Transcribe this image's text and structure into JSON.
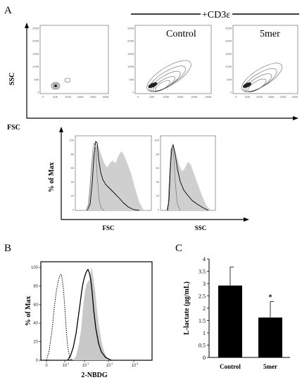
{
  "panels": {
    "a": "A",
    "b": "B",
    "c": "C"
  },
  "header": {
    "cd3": "+CD3ε"
  },
  "contours": {
    "titles": [
      "Control",
      "5mer"
    ],
    "ylabel": "SSC",
    "xlabel": "FSC",
    "ticks": [
      "250K",
      "200K",
      "150K",
      "100K",
      "50K",
      "0"
    ],
    "xticks": [
      "0",
      "50K",
      "100K",
      "150K",
      "200K",
      "250K"
    ]
  },
  "histA": {
    "ylabel": "% of Max",
    "xlabels": [
      "FSC",
      "SSC"
    ],
    "yticks": [
      "100",
      "80",
      "60",
      "40",
      "20",
      "0"
    ]
  },
  "histB": {
    "ylabel": "% of Max",
    "xlabel": "2-NBDG",
    "yticks": [
      "100",
      "80",
      "60",
      "40",
      "20",
      "0"
    ],
    "xticks": [
      "0",
      "10",
      "10",
      "10",
      "10"
    ],
    "xexps": [
      "2",
      "3",
      "4",
      "5"
    ]
  },
  "chart_data": {
    "type": "bar",
    "categories": [
      "Control",
      "5mer"
    ],
    "values": [
      2.92,
      1.62
    ],
    "errors": [
      0.75,
      0.65
    ],
    "annotations": [
      "",
      "*"
    ],
    "ylabel": "L-lactate (μg/mL)",
    "ylim": [
      0,
      4
    ],
    "yticks": [
      "0",
      "0.5",
      "1",
      "1.5",
      "2",
      "2.5",
      "3",
      "3.5",
      "4"
    ],
    "bar_color": "#000000"
  }
}
